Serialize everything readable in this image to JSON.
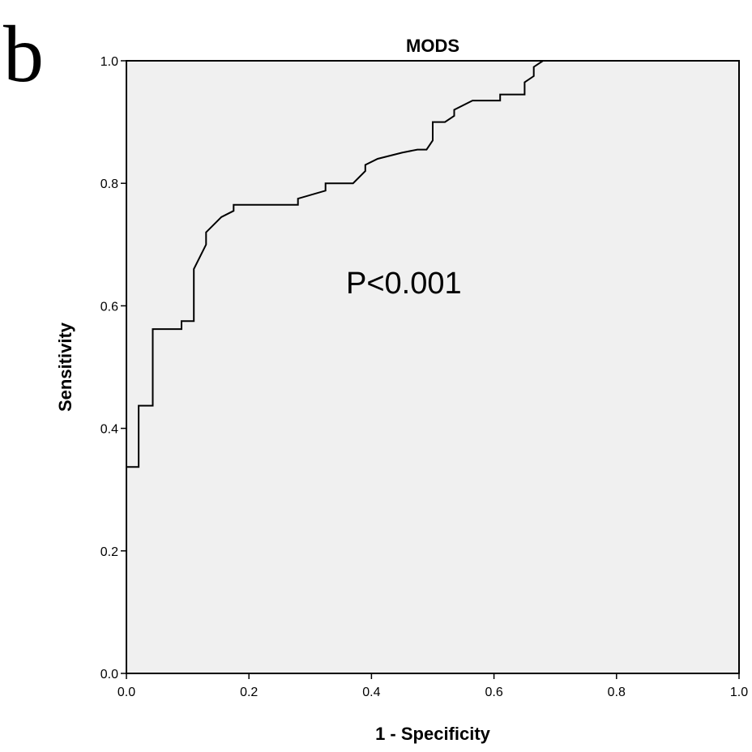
{
  "panel_label": "b",
  "chart_data": {
    "type": "line",
    "title": "MODS",
    "xlabel": "1 - Specificity",
    "ylabel": "Sensitivity",
    "xlim": [
      0.0,
      1.0
    ],
    "ylim": [
      0.0,
      1.0
    ],
    "xticks": [
      "0.0",
      "0.2",
      "0.4",
      "0.6",
      "0.8",
      "1.0"
    ],
    "yticks": [
      "0.0",
      "0.2",
      "0.4",
      "0.6",
      "0.8",
      "1.0"
    ],
    "grid": false,
    "plot_background": "#f0f0f0",
    "line_color": "#000000",
    "annotation": "P<0.001",
    "series": [
      {
        "x": [
          0.0,
          0.0,
          0.02,
          0.02,
          0.043,
          0.043,
          0.09,
          0.09,
          0.11,
          0.11,
          0.13,
          0.13,
          0.155,
          0.175,
          0.175,
          0.28,
          0.28,
          0.325,
          0.325,
          0.37,
          0.39,
          0.39,
          0.41,
          0.45,
          0.475,
          0.49,
          0.5,
          0.5,
          0.52,
          0.535,
          0.535,
          0.565,
          0.61,
          0.61,
          0.65,
          0.65,
          0.665,
          0.665,
          0.68,
          1.0
        ],
        "y": [
          0.0,
          0.337,
          0.337,
          0.437,
          0.437,
          0.562,
          0.562,
          0.575,
          0.575,
          0.66,
          0.7,
          0.72,
          0.745,
          0.755,
          0.765,
          0.765,
          0.775,
          0.788,
          0.8,
          0.8,
          0.82,
          0.83,
          0.84,
          0.85,
          0.855,
          0.855,
          0.87,
          0.9,
          0.9,
          0.91,
          0.92,
          0.935,
          0.935,
          0.945,
          0.945,
          0.965,
          0.975,
          0.99,
          1.0,
          1.0
        ]
      }
    ]
  }
}
